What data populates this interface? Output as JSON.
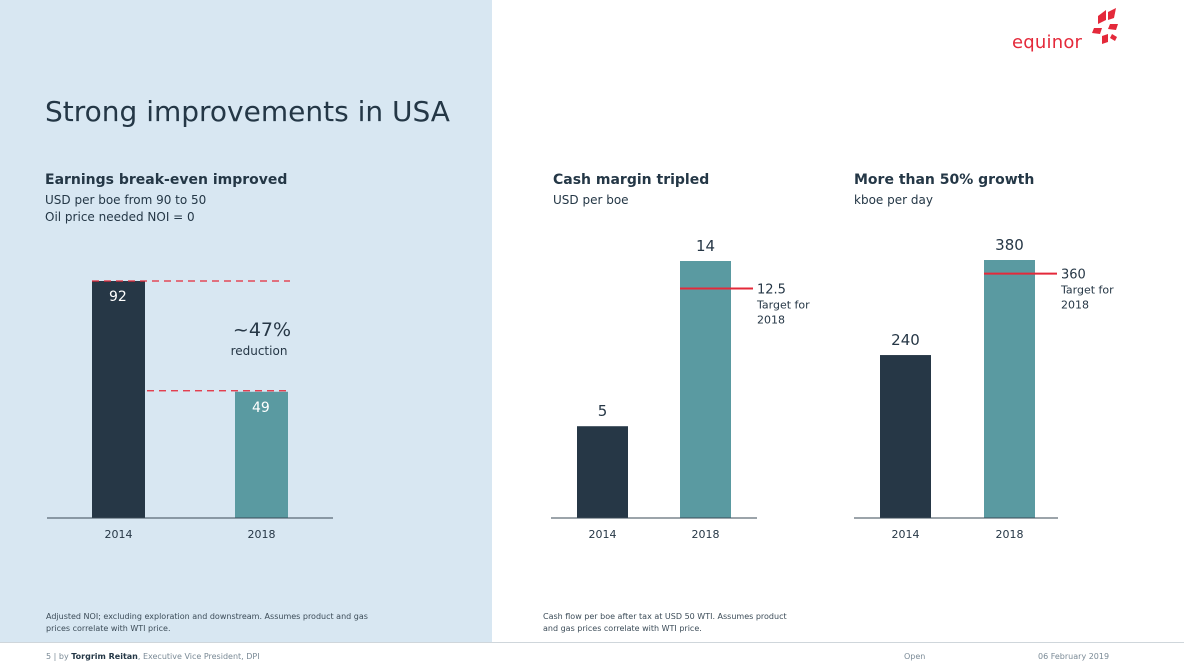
{
  "title": "Strong improvements in USA",
  "logo": {
    "text": "equinor"
  },
  "colors": {
    "dark": "#263746",
    "teal": "#5a9aa1",
    "red": "#e4293a",
    "left_bg": "#d8e7f2"
  },
  "chart_data": [
    {
      "type": "bar",
      "title": "Earnings break-even improved",
      "subtitle": [
        "USD per boe from 90 to 50",
        "Oil price needed NOI = 0"
      ],
      "categories": [
        "2014",
        "2018"
      ],
      "values": [
        92,
        49
      ],
      "ylim": [
        0,
        92
      ],
      "annotation": {
        "value": "~47%",
        "label": "reduction"
      },
      "footnote": "Adjusted NOI; excluding exploration and downstream. Assumes product and gas prices correlate with WTI price."
    },
    {
      "type": "bar",
      "title": "Cash margin tripled",
      "subtitle": [
        "USD per boe"
      ],
      "categories": [
        "2014",
        "2018"
      ],
      "values": [
        5,
        14
      ],
      "ylim": [
        0,
        14
      ],
      "target": {
        "value": 12.5,
        "label": "12.5",
        "note": [
          "Target for",
          "2018"
        ]
      },
      "footnote": "Cash flow per boe after tax at USD 50 WTI. Assumes product and gas prices correlate with WTI price."
    },
    {
      "type": "bar",
      "title": "More than 50% growth",
      "subtitle": [
        "kboe per day"
      ],
      "categories": [
        "2014",
        "2018"
      ],
      "values": [
        240,
        380
      ],
      "ylim": [
        0,
        380
      ],
      "target": {
        "value": 360,
        "label": "360",
        "note": [
          "Target for",
          "2018"
        ]
      }
    }
  ],
  "footer": {
    "page": "5",
    "sep": "|",
    "by": "by",
    "presenter": "Torgrim Reitan",
    "role": ", Executive Vice President, DPI",
    "classification": "Open",
    "date": "06 February 2019"
  }
}
